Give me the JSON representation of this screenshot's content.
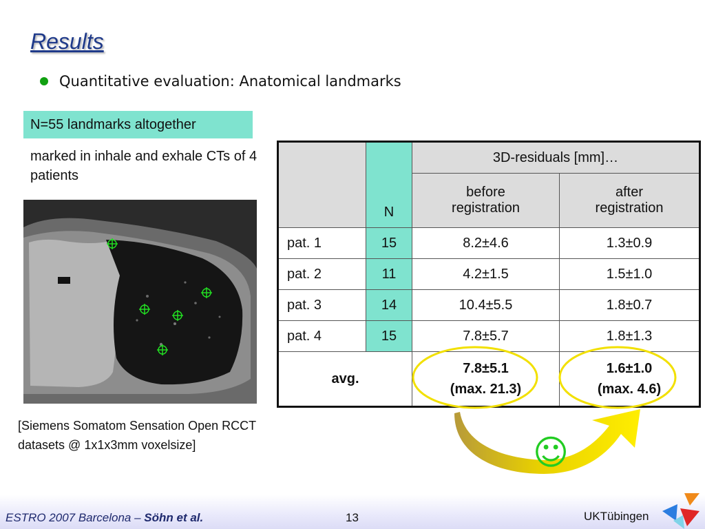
{
  "slide": {
    "title": "Results",
    "bullet": "Quantitative evaluation: Anatomical landmarks",
    "highlight_box": "N=55 landmarks altogether",
    "subtext": "marked in inhale and exhale CTs of 4 patients",
    "caption": "[Siemens Somatom Sensation Open RCCT datasets @ 1x1x3mm voxelsize]",
    "smiley": "☺"
  },
  "table": {
    "header_group": "3D-residuals [mm]…",
    "col_n": "N",
    "col_before_line1": "before",
    "col_before_line2": "registration",
    "col_after_line1": "after",
    "col_after_line2": "registration",
    "rows": [
      {
        "label": "pat. 1",
        "n": "15",
        "before": "8.2±4.6",
        "after": "1.3±0.9"
      },
      {
        "label": "pat. 2",
        "n": "11",
        "before": "4.2±1.5",
        "after": "1.5±1.0"
      },
      {
        "label": "pat. 3",
        "n": "14",
        "before": "10.4±5.5",
        "after": "1.8±0.7"
      },
      {
        "label": "pat. 4",
        "n": "15",
        "before": "7.8±5.7",
        "after": "1.8±1.3"
      }
    ],
    "avg": {
      "label": "avg.",
      "before_line1": "7.8±5.1",
      "before_line2": "(max. 21.3)",
      "after_line1": "1.6±1.0",
      "after_line2": "(max. 4.6)"
    }
  },
  "footer": {
    "conference": "ESTRO 2007 Barcelona – ",
    "authors": "Söhn et al.",
    "page": "13",
    "institution": "UKTübingen"
  },
  "colors": {
    "accent_teal": "#7fe3cf",
    "title_blue": "#1f3a8a",
    "highlight_yellow": "#f2e000",
    "bullet_green": "#10a010"
  }
}
